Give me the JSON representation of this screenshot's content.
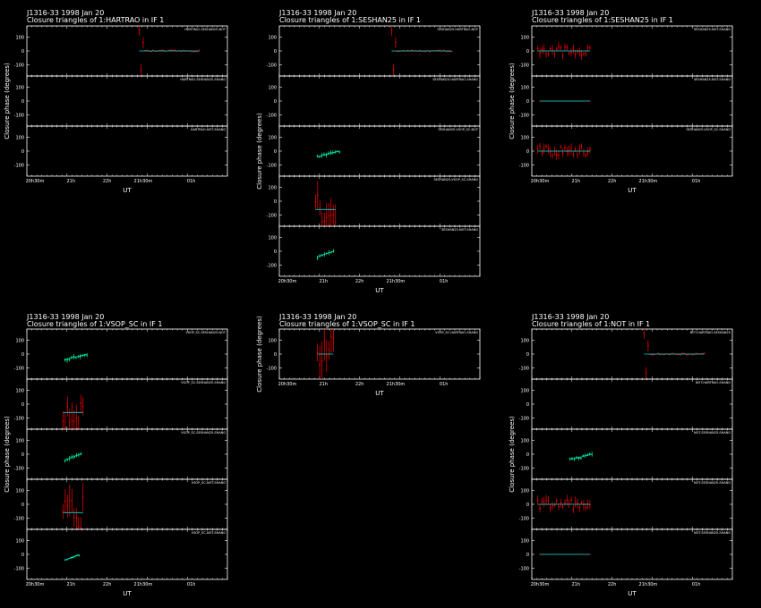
{
  "colors": {
    "background": "#000000",
    "frame": "#ffffff",
    "data": "#ff0000",
    "model": "#00ff80",
    "model_line": "#00d8d8"
  },
  "plots": [
    {
      "title1": "J1316-33  1998 Jan 20",
      "title2": "Closure triangles of 1:HARTRAO in IF 1",
      "xlabel": "UT",
      "ylabel": "Closure phase  (degrees)",
      "xticks": [
        "20h30m",
        "21h",
        "22h",
        "21h30m",
        "01h"
      ],
      "panels": [
        {
          "label": "HARTRAO-SESHAN25-NOT",
          "yticks": [
            "100",
            "0",
            "-100"
          ]
        },
        {
          "label": "HARTRAO-SESHAN25-SHANG",
          "yticks": [
            "100",
            "0",
            "-100"
          ]
        },
        {
          "label": "HARTRAO-NOT-SHANG",
          "yticks": [
            "100",
            "0",
            "-100"
          ]
        }
      ]
    },
    {
      "title1": "J1316-33  1998 Jan 20",
      "title2": "Closure triangles of 1:SESHAN25 in IF 1",
      "xlabel": "UT",
      "ylabel": "Closure phase  (degrees)",
      "xticks": [
        "20h30m",
        "21h",
        "22h",
        "21h30m",
        "01h"
      ],
      "panels": [
        {
          "label": "SESHAN25-HARTRAO-NOT",
          "yticks": [
            "100",
            "0",
            "-100"
          ]
        },
        {
          "label": "SESHAN25-HARTRAO-SHANG",
          "yticks": [
            "100",
            "0",
            "-100"
          ]
        },
        {
          "label": "SESHAN25-VSOP_SC-NOT",
          "yticks": [
            "100",
            "0",
            "-100"
          ]
        },
        {
          "label": "SESHAN25-VSOP_SC-SHANG",
          "yticks": [
            "100",
            "0",
            "-100"
          ]
        },
        {
          "label": "SESHAN25-NOT-SHANG",
          "yticks": [
            "100",
            "0",
            "-100"
          ]
        }
      ]
    },
    {
      "title1": "J1316-33  1998 Jan 20",
      "title2": "Closure triangles of 1:SESHAN25 in IF 1",
      "xlabel": "UT",
      "ylabel": "Closure phase  (degrees)",
      "xticks": [
        "20h30m",
        "21h",
        "22h",
        "21h30m",
        "01h"
      ],
      "panels": [
        {
          "label": "SESHAN25-NOT-SHANG",
          "yticks": [
            "100",
            "0",
            "-100"
          ]
        },
        {
          "label": "SESHAN25-NOT-SHANG",
          "yticks": [
            "100",
            "0",
            "-100"
          ]
        },
        {
          "label": "SESHAN25-VSOP_SC-SHANG",
          "yticks": [
            "100",
            "0",
            "-100"
          ]
        }
      ]
    },
    {
      "title1": "J1316-33  1998 Jan 20",
      "title2": "Closure triangles of 1:VSOP_SC in IF 1",
      "xlabel": "UT",
      "ylabel": "Closure phase  (degrees)",
      "xticks": [
        "20h30m",
        "21h",
        "22h",
        "21h30m",
        "01h"
      ],
      "panels": [
        {
          "label": "VSOP_SC-SESHAN25-NOT",
          "yticks": [
            "100",
            "0",
            "-100"
          ]
        },
        {
          "label": "VSOP_SC-SESHAN25-SHANG",
          "yticks": [
            "100",
            "0",
            "-100"
          ]
        },
        {
          "label": "VSOP_SC-SESHAN25-SHANG",
          "yticks": [
            "100",
            "0",
            "-100"
          ]
        },
        {
          "label": "VSOP_SC-NOT-SHANG",
          "yticks": [
            "100",
            "0",
            "-100"
          ]
        },
        {
          "label": "VSOP_SC-NOT-SHANG",
          "yticks": [
            "100",
            "0",
            "-100"
          ]
        }
      ]
    },
    {
      "title1": "J1316-33  1998 Jan 20",
      "title2": "Closure triangles of 1:VSOP_SC in IF 1",
      "xlabel": "UT",
      "ylabel": "Closure phase  (degrees)",
      "xticks": [
        "20h30m",
        "21h",
        "22h",
        "21h30m",
        "01h"
      ],
      "panels": [
        {
          "label": "VSOP_SC-HARTRAO-SHANG",
          "yticks": [
            "100",
            "0",
            "-100"
          ]
        }
      ]
    },
    {
      "title1": "J1316-33  1998 Jan 20",
      "title2": "Closure triangles of 1:NOT in IF 1",
      "xlabel": "UT",
      "ylabel": "Closure phase  (degrees)",
      "xticks": [
        "20h30m",
        "21h",
        "22h",
        "21h30m",
        "01h"
      ],
      "panels": [
        {
          "label": "NOT-HARTRAO-SESHAN25",
          "yticks": [
            "100",
            "0",
            "-100"
          ]
        },
        {
          "label": "NOT-HARTRAO-SHANG",
          "yticks": [
            "100",
            "0",
            "-100"
          ]
        },
        {
          "label": "NOT-SESHAN25-SHANG",
          "yticks": [
            "100",
            "0",
            "-100"
          ]
        },
        {
          "label": "NOT-SESHAN25-SHANG",
          "yticks": [
            "100",
            "0",
            "-100"
          ]
        },
        {
          "label": "NOT-SESHAN25-SHANG",
          "yticks": [
            "100",
            "0",
            "-100"
          ]
        }
      ]
    }
  ],
  "chart_data": [
    {
      "type": "scatter",
      "title": "Closure triangles of 1:HARTRAO in IF 1",
      "xlabel": "UT",
      "ylabel": "Closure phase  (degrees)",
      "ylim": [
        -180,
        180
      ],
      "panels": [
        {
          "name": "HARTRAO-SESHAN25-NOT",
          "x_range": [
            0.56,
            0.86
          ],
          "model": 0,
          "spread": 6,
          "spike": 150,
          "style": "red"
        },
        {
          "name": "HARTRAO-SESHAN25-SHANG",
          "x_range": null
        },
        {
          "name": "HARTRAO-NOT-SHANG",
          "x_range": null
        }
      ]
    },
    {
      "type": "scatter",
      "title": "Closure triangles of 1:SESHAN25 in IF 1",
      "xlabel": "UT",
      "ylabel": "Closure phase  (degrees)",
      "ylim": [
        -180,
        180
      ],
      "panels": [
        {
          "name": "SESHAN25-HARTRAO-NOT",
          "x_range": [
            0.56,
            0.86
          ],
          "model": 0,
          "spread": 6,
          "spike": 150,
          "style": "red"
        },
        {
          "name": "SESHAN25-HARTRAO-SHANG",
          "x_range": null
        },
        {
          "name": "SESHAN25-VSOP_SC-NOT",
          "x_range": [
            0.19,
            0.3
          ],
          "model": -40,
          "spread": 18,
          "spike": 0,
          "style": "green"
        },
        {
          "name": "SESHAN25-VSOP_SC-SHANG",
          "x_range": [
            0.18,
            0.28
          ],
          "model": -60,
          "spread": 120,
          "spike": 0,
          "style": "red"
        },
        {
          "name": "SESHAN25-NOT-SHANG",
          "x_range": [
            0.19,
            0.27
          ],
          "model": -40,
          "spread": 18,
          "spike": 0,
          "style": "green"
        }
      ]
    },
    {
      "type": "scatter",
      "title": "Closure triangles of 1:SESHAN25 in IF 1",
      "xlabel": "UT",
      "ylabel": "Closure phase  (degrees)",
      "ylim": [
        -180,
        180
      ],
      "panels": [
        {
          "name": "SESHAN25-NOT-SHANG",
          "x_range": [
            0.03,
            0.29
          ],
          "model": 0,
          "spread": 35,
          "spike": 0,
          "style": "red"
        },
        {
          "name": "SESHAN25-NOT-SHANG",
          "x_range": [
            0.04,
            0.29
          ],
          "model": 0,
          "spread": 3,
          "spike": 0,
          "style": "flat"
        },
        {
          "name": "SESHAN25-VSOP_SC-SHANG",
          "x_range": [
            0.03,
            0.29
          ],
          "model": 0,
          "spread": 35,
          "spike": 0,
          "style": "red"
        }
      ]
    },
    {
      "type": "scatter",
      "title": "Closure triangles of 1:VSOP_SC in IF 1",
      "xlabel": "UT",
      "ylabel": "Closure phase  (degrees)",
      "ylim": [
        -180,
        180
      ],
      "panels": [
        {
          "name": "VSOP_SC-SESHAN25-NOT",
          "x_range": [
            0.19,
            0.3
          ],
          "model": -40,
          "spread": 18,
          "spike": 0,
          "style": "green"
        },
        {
          "name": "VSOP_SC-SESHAN25-SHANG",
          "x_range": [
            0.18,
            0.28
          ],
          "model": -60,
          "spread": 120,
          "spike": 0,
          "style": "red"
        },
        {
          "name": "VSOP_SC-SESHAN25-SHANG",
          "x_range": [
            0.19,
            0.27
          ],
          "model": -40,
          "spread": 18,
          "spike": 0,
          "style": "green"
        },
        {
          "name": "VSOP_SC-NOT-SHANG",
          "x_range": [
            0.18,
            0.28
          ],
          "model": -60,
          "spread": 120,
          "spike": 0,
          "style": "red"
        },
        {
          "name": "VSOP_SC-NOT-SHANG",
          "x_range": [
            0.19,
            0.26
          ],
          "model": -40,
          "spread": 8,
          "spike": 0,
          "style": "green"
        }
      ]
    },
    {
      "type": "scatter",
      "title": "Closure triangles of 1:VSOP_SC in IF 1",
      "xlabel": "UT",
      "ylabel": "Closure phase  (degrees)",
      "ylim": [
        -180,
        180
      ],
      "panels": [
        {
          "name": "VSOP_SC-HARTRAO-SHANG",
          "x_range": [
            0.19,
            0.27
          ],
          "model": 0,
          "spread": 130,
          "spike": 0,
          "style": "red"
        }
      ]
    },
    {
      "type": "scatter",
      "title": "Closure triangles of 1:NOT in IF 1",
      "xlabel": "UT",
      "ylabel": "Closure phase  (degrees)",
      "ylim": [
        -180,
        180
      ],
      "panels": [
        {
          "name": "NOT-HARTRAO-SESHAN25",
          "x_range": [
            0.56,
            0.86
          ],
          "model": 0,
          "spread": 6,
          "spike": 150,
          "style": "red"
        },
        {
          "name": "NOT-HARTRAO-SHANG",
          "x_range": null
        },
        {
          "name": "NOT-SESHAN25-SHANG",
          "x_range": [
            0.19,
            0.3
          ],
          "model": -40,
          "spread": 18,
          "spike": 0,
          "style": "green"
        },
        {
          "name": "NOT-SESHAN25-SHANG",
          "x_range": [
            0.03,
            0.29
          ],
          "model": 0,
          "spread": 35,
          "spike": 0,
          "style": "red"
        },
        {
          "name": "NOT-SESHAN25-SHANG",
          "x_range": [
            0.04,
            0.29
          ],
          "model": 0,
          "spread": 3,
          "spike": 0,
          "style": "flat"
        }
      ]
    }
  ]
}
